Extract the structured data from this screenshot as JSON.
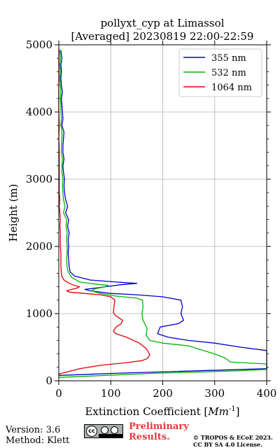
{
  "chart_data": {
    "type": "line",
    "title": "pollyxt_cyp at Limassol",
    "subtitle": "[Averaged] 20230819 22:00-22:59",
    "xlabel": "Extinction Coefficient [",
    "xlabel_unit": "Mm",
    "xlabel_exp": "-1",
    "xlabel_end": "]",
    "ylabel": "Height (m)",
    "xlim": [
      0,
      400
    ],
    "ylim": [
      0,
      5000
    ],
    "xticks": [
      0,
      100,
      200,
      300,
      400
    ],
    "yticks": [
      0,
      1000,
      2000,
      3000,
      4000,
      5000
    ],
    "grid": true,
    "legend_position": "top-right",
    "series": [
      {
        "name": "355 nm",
        "color": "#0000cc",
        "points": [
          [
            0,
            80
          ],
          [
            120,
            115
          ],
          [
            400,
            180
          ],
          [
            400,
            450
          ],
          [
            350,
            500
          ],
          [
            300,
            560
          ],
          [
            250,
            600
          ],
          [
            210,
            650
          ],
          [
            190,
            700
          ],
          [
            195,
            800
          ],
          [
            230,
            850
          ],
          [
            240,
            900
          ],
          [
            235,
            1000
          ],
          [
            238,
            1100
          ],
          [
            235,
            1200
          ],
          [
            200,
            1250
          ],
          [
            150,
            1280
          ],
          [
            100,
            1300
          ],
          [
            60,
            1340
          ],
          [
            50,
            1360
          ],
          [
            80,
            1390
          ],
          [
            100,
            1410
          ],
          [
            120,
            1430
          ],
          [
            150,
            1450
          ],
          [
            110,
            1470
          ],
          [
            60,
            1500
          ],
          [
            30,
            1560
          ],
          [
            22,
            1620
          ],
          [
            20,
            1700
          ],
          [
            19,
            1800
          ],
          [
            18,
            1900
          ],
          [
            19,
            2000
          ],
          [
            18,
            2100
          ],
          [
            20,
            2200
          ],
          [
            17,
            2300
          ],
          [
            19,
            2400
          ],
          [
            13,
            2500
          ],
          [
            17,
            2600
          ],
          [
            13,
            2700
          ],
          [
            11,
            2800
          ],
          [
            10,
            2900
          ],
          [
            11,
            3000
          ],
          [
            9,
            3100
          ],
          [
            8,
            3200
          ],
          [
            10,
            3300
          ],
          [
            8,
            3400
          ],
          [
            8,
            3500
          ],
          [
            9,
            3600
          ],
          [
            10,
            3700
          ],
          [
            6,
            3800
          ],
          [
            8,
            3900
          ],
          [
            7,
            4000
          ],
          [
            6,
            4100
          ],
          [
            5,
            4200
          ],
          [
            7,
            4300
          ],
          [
            5,
            4400
          ],
          [
            4,
            4500
          ],
          [
            5,
            4600
          ],
          [
            4,
            4700
          ],
          [
            6,
            4800
          ],
          [
            4,
            4900
          ],
          [
            5,
            4920
          ]
        ]
      },
      {
        "name": "532 nm",
        "color": "#00b400",
        "points": [
          [
            0,
            50
          ],
          [
            180,
            110
          ],
          [
            350,
            150
          ],
          [
            400,
            170
          ],
          [
            400,
            250
          ],
          [
            330,
            280
          ],
          [
            320,
            340
          ],
          [
            300,
            400
          ],
          [
            270,
            470
          ],
          [
            250,
            520
          ],
          [
            200,
            560
          ],
          [
            175,
            600
          ],
          [
            168,
            680
          ],
          [
            170,
            780
          ],
          [
            162,
            900
          ],
          [
            160,
            1000
          ],
          [
            162,
            1100
          ],
          [
            161,
            1200
          ],
          [
            150,
            1230
          ],
          [
            110,
            1260
          ],
          [
            80,
            1300
          ],
          [
            62,
            1340
          ],
          [
            70,
            1370
          ],
          [
            90,
            1400
          ],
          [
            95,
            1420
          ],
          [
            70,
            1440
          ],
          [
            40,
            1470
          ],
          [
            25,
            1540
          ],
          [
            18,
            1620
          ],
          [
            16,
            1700
          ],
          [
            15,
            1800
          ],
          [
            16,
            1900
          ],
          [
            16,
            2000
          ],
          [
            15,
            2100
          ],
          [
            16,
            2200
          ],
          [
            14,
            2300
          ],
          [
            15,
            2400
          ],
          [
            9,
            2500
          ],
          [
            12,
            2600
          ],
          [
            9,
            2700
          ],
          [
            8,
            2800
          ],
          [
            7,
            2900
          ],
          [
            8,
            3000
          ],
          [
            6,
            3100
          ],
          [
            6,
            3200
          ],
          [
            7,
            3300
          ],
          [
            5,
            3400
          ],
          [
            5,
            3500
          ],
          [
            6,
            3600
          ],
          [
            6,
            3700
          ],
          [
            4,
            3800
          ],
          [
            5,
            3900
          ],
          [
            4,
            4000
          ],
          [
            4,
            4100
          ],
          [
            3,
            4200
          ],
          [
            4,
            4300
          ],
          [
            3,
            4400
          ],
          [
            2,
            4500
          ],
          [
            3,
            4600
          ],
          [
            2,
            4700
          ],
          [
            3,
            4800
          ],
          [
            2,
            4900
          ],
          [
            2,
            4930
          ]
        ]
      },
      {
        "name": "1064 nm",
        "color": "#dd0000",
        "points": [
          [
            0,
            100
          ],
          [
            40,
            180
          ],
          [
            80,
            230
          ],
          [
            130,
            270
          ],
          [
            160,
            300
          ],
          [
            170,
            330
          ],
          [
            175,
            380
          ],
          [
            173,
            420
          ],
          [
            168,
            480
          ],
          [
            155,
            560
          ],
          [
            130,
            650
          ],
          [
            110,
            700
          ],
          [
            105,
            740
          ],
          [
            110,
            800
          ],
          [
            120,
            850
          ],
          [
            123,
            900
          ],
          [
            115,
            940
          ],
          [
            108,
            980
          ],
          [
            105,
            1020
          ],
          [
            106,
            1100
          ],
          [
            108,
            1200
          ],
          [
            100,
            1250
          ],
          [
            80,
            1280
          ],
          [
            50,
            1300
          ],
          [
            20,
            1320
          ],
          [
            15,
            1340
          ],
          [
            25,
            1360
          ],
          [
            35,
            1380
          ],
          [
            40,
            1400
          ],
          [
            30,
            1420
          ],
          [
            20,
            1450
          ],
          [
            10,
            1500
          ],
          [
            6,
            1550
          ],
          [
            5,
            1600
          ],
          [
            4,
            1700
          ],
          [
            4,
            1800
          ],
          [
            4,
            1900
          ],
          [
            3,
            2000
          ],
          [
            3,
            2100
          ],
          [
            3,
            2200
          ],
          [
            2,
            2300
          ],
          [
            3,
            2400
          ],
          [
            2,
            2500
          ],
          [
            1,
            2600
          ],
          [
            2,
            2700
          ],
          [
            1,
            2800
          ],
          [
            1,
            2900
          ],
          [
            1,
            3000
          ],
          [
            1,
            3200
          ],
          [
            1,
            3400
          ],
          [
            0,
            3600
          ],
          [
            1,
            3800
          ],
          [
            0,
            4000
          ],
          [
            0,
            4200
          ],
          [
            0,
            4400
          ],
          [
            0,
            4600
          ],
          [
            0,
            4800
          ],
          [
            0,
            4950
          ]
        ]
      }
    ]
  },
  "footer": {
    "version": "Version: 3.6",
    "method": "Method: Klett",
    "preliminary_line1": "Preliminary",
    "preliminary_line2": "Results.",
    "copyright_line1": "© TROPOS & ECoE 2023.",
    "copyright_line2": "CC BY SA 4.0 License.",
    "badge_cc": "cc"
  }
}
